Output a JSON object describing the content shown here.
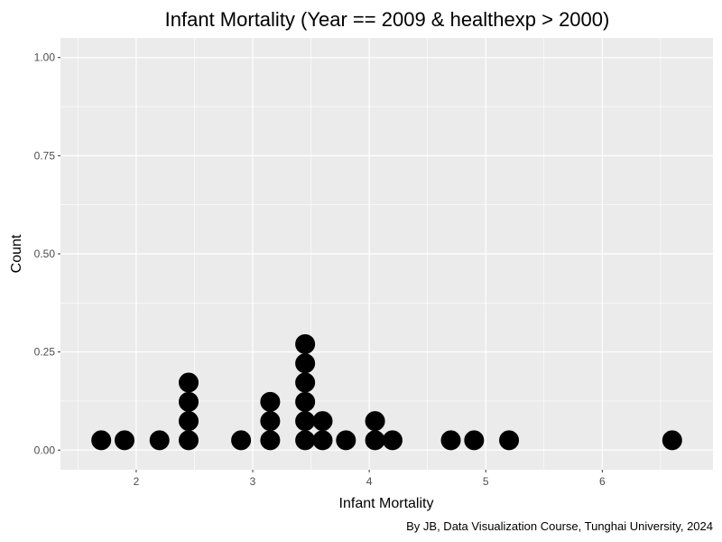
{
  "chart_data": {
    "type": "scatter",
    "subtype": "dotplot",
    "title": "Infant Mortality (Year == 2009 & healthexp > 2000)",
    "xlabel": "Infant Mortality",
    "ylabel": "Count",
    "caption": "By JB, Data Visualization Course, Tunghai University, 2024",
    "xlim": [
      1.35,
      6.95
    ],
    "ylim": [
      -0.05,
      1.05
    ],
    "xticks": [
      2,
      3,
      4,
      5,
      6
    ],
    "yticks": [
      0.0,
      0.25,
      0.5,
      0.75,
      1.0
    ],
    "ytick_labels": [
      "0.00",
      "0.25",
      "0.50",
      "0.75",
      "1.00"
    ],
    "grid": true,
    "background": "#ebebeb",
    "grid_color": "#ffffff",
    "point_color": "#000000",
    "dot_stacks": [
      {
        "x": 1.7,
        "count": 1
      },
      {
        "x": 1.9,
        "count": 1
      },
      {
        "x": 2.2,
        "count": 1
      },
      {
        "x": 2.45,
        "count": 4
      },
      {
        "x": 2.9,
        "count": 1
      },
      {
        "x": 3.15,
        "count": 3
      },
      {
        "x": 3.45,
        "count": 6
      },
      {
        "x": 3.6,
        "count": 2
      },
      {
        "x": 3.8,
        "count": 1
      },
      {
        "x": 4.05,
        "count": 2
      },
      {
        "x": 4.2,
        "count": 1
      },
      {
        "x": 4.7,
        "count": 1
      },
      {
        "x": 4.9,
        "count": 1
      },
      {
        "x": 5.2,
        "count": 1
      },
      {
        "x": 6.6,
        "count": 1
      }
    ],
    "dot_y_step": 0.049,
    "dot_y_start": 0.025
  }
}
